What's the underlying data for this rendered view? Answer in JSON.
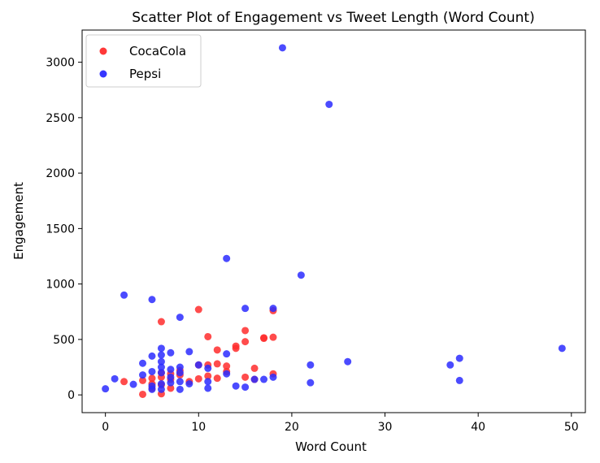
{
  "chart_data": {
    "type": "scatter",
    "title": "Scatter Plot of Engagement vs Tweet Length (Word Count)",
    "xlabel": "Word Count",
    "ylabel": "Engagement",
    "xlim": [
      -2.5,
      51.5
    ],
    "ylim": [
      -160,
      3290
    ],
    "xticks": [
      0,
      10,
      20,
      30,
      40,
      50
    ],
    "yticks": [
      0,
      500,
      1000,
      1500,
      2000,
      2500,
      3000
    ],
    "grid": false,
    "legend_position": "top-left",
    "series": [
      {
        "name": "CocaCola",
        "color": "#ff2d2d",
        "points": [
          [
            2,
            120
          ],
          [
            4,
            5
          ],
          [
            4,
            130
          ],
          [
            5,
            60
          ],
          [
            5,
            150
          ],
          [
            6,
            660
          ],
          [
            6,
            200
          ],
          [
            6,
            160
          ],
          [
            6,
            10
          ],
          [
            7,
            140
          ],
          [
            7,
            190
          ],
          [
            8,
            180
          ],
          [
            10,
            770
          ],
          [
            10,
            270
          ],
          [
            11,
            525
          ],
          [
            11,
            270
          ],
          [
            11,
            170
          ],
          [
            12,
            405
          ],
          [
            12,
            280
          ],
          [
            12,
            150
          ],
          [
            13,
            260
          ],
          [
            13,
            210
          ],
          [
            14,
            440
          ],
          [
            14,
            420
          ],
          [
            15,
            580
          ],
          [
            15,
            480
          ],
          [
            16,
            240
          ],
          [
            16,
            140
          ],
          [
            17,
            510
          ],
          [
            17,
            515
          ],
          [
            18,
            520
          ],
          [
            18,
            760
          ],
          [
            18,
            190
          ],
          [
            10,
            145
          ],
          [
            8,
            220
          ],
          [
            5,
            100
          ],
          [
            6,
            90
          ],
          [
            7,
            60
          ],
          [
            9,
            120
          ],
          [
            15,
            160
          ]
        ]
      },
      {
        "name": "Pepsi",
        "color": "#2b2bff",
        "points": [
          [
            0,
            55
          ],
          [
            1,
            145
          ],
          [
            2,
            900
          ],
          [
            3,
            95
          ],
          [
            4,
            285
          ],
          [
            4,
            180
          ],
          [
            5,
            860
          ],
          [
            5,
            350
          ],
          [
            5,
            210
          ],
          [
            5,
            80
          ],
          [
            5,
            50
          ],
          [
            6,
            420
          ],
          [
            6,
            360
          ],
          [
            6,
            300
          ],
          [
            6,
            250
          ],
          [
            6,
            200
          ],
          [
            6,
            100
          ],
          [
            6,
            50
          ],
          [
            7,
            380
          ],
          [
            7,
            230
          ],
          [
            7,
            160
          ],
          [
            7,
            110
          ],
          [
            8,
            700
          ],
          [
            8,
            250
          ],
          [
            8,
            200
          ],
          [
            8,
            120
          ],
          [
            8,
            50
          ],
          [
            9,
            390
          ],
          [
            9,
            100
          ],
          [
            10,
            270
          ],
          [
            11,
            240
          ],
          [
            11,
            120
          ],
          [
            11,
            60
          ],
          [
            13,
            1230
          ],
          [
            13,
            370
          ],
          [
            13,
            190
          ],
          [
            14,
            80
          ],
          [
            15,
            780
          ],
          [
            15,
            70
          ],
          [
            16,
            140
          ],
          [
            17,
            140
          ],
          [
            18,
            780
          ],
          [
            18,
            160
          ],
          [
            19,
            3130
          ],
          [
            21,
            1080
          ],
          [
            22,
            270
          ],
          [
            22,
            110
          ],
          [
            24,
            2620
          ],
          [
            26,
            300
          ],
          [
            37,
            270
          ],
          [
            38,
            330
          ],
          [
            38,
            130
          ],
          [
            49,
            420
          ]
        ]
      }
    ]
  }
}
